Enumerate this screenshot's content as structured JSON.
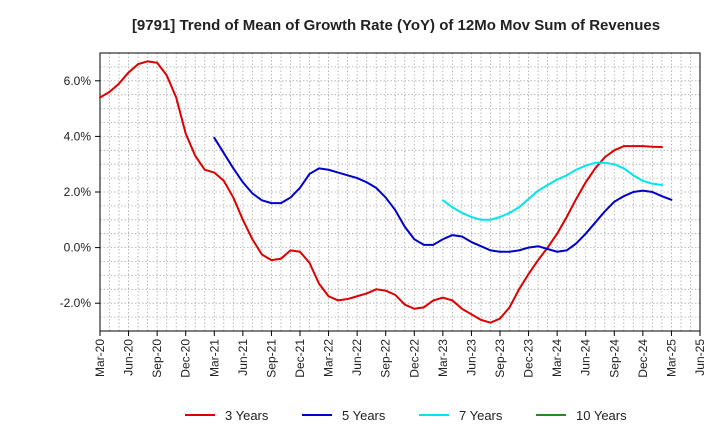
{
  "chart_data": {
    "type": "line",
    "title": "[9791]  Trend of Mean of Growth Rate (YoY) of 12Mo Mov Sum of Revenues",
    "xlabel": "",
    "ylabel": "",
    "ylim": [
      -3.0,
      7.0
    ],
    "y_ticks": [
      -2.0,
      0.0,
      2.0,
      4.0,
      6.0
    ],
    "y_tick_labels": [
      "-2.0%",
      "0.0%",
      "2.0%",
      "4.0%",
      "6.0%"
    ],
    "x_tick_labels": [
      "Mar-20",
      "Jun-20",
      "Sep-20",
      "Dec-20",
      "Mar-21",
      "Jun-21",
      "Sep-21",
      "Dec-21",
      "Mar-22",
      "Jun-22",
      "Sep-22",
      "Dec-22",
      "Mar-23",
      "Jun-23",
      "Sep-23",
      "Dec-23",
      "Mar-24",
      "Jun-24",
      "Sep-24",
      "Dec-24",
      "Mar-25",
      "Jun-25"
    ],
    "x_index_range": [
      0,
      63
    ],
    "grid": true,
    "legend_position": "bottom",
    "series": [
      {
        "name": "3 Years",
        "color": "#dd0000",
        "start_index": 0,
        "values": [
          5.4,
          5.6,
          5.9,
          6.3,
          6.6,
          6.7,
          6.65,
          6.2,
          5.4,
          4.1,
          3.3,
          2.8,
          2.7,
          2.4,
          1.8,
          1.0,
          0.3,
          -0.25,
          -0.45,
          -0.4,
          -0.1,
          -0.15,
          -0.55,
          -1.3,
          -1.75,
          -1.9,
          -1.85,
          -1.75,
          -1.65,
          -1.5,
          -1.55,
          -1.7,
          -2.05,
          -2.2,
          -2.15,
          -1.9,
          -1.8,
          -1.9,
          -2.2,
          -2.4,
          -2.6,
          -2.7,
          -2.55,
          -2.15,
          -1.5,
          -0.95,
          -0.45,
          0.0,
          0.5,
          1.1,
          1.75,
          2.35,
          2.85,
          3.25,
          3.5,
          3.65,
          3.65,
          3.65,
          3.63,
          3.62
        ]
      },
      {
        "name": "5 Years",
        "color": "#0000cc",
        "start_index": 12,
        "values": [
          3.95,
          3.4,
          2.85,
          2.35,
          1.95,
          1.7,
          1.6,
          1.6,
          1.8,
          2.15,
          2.65,
          2.85,
          2.8,
          2.7,
          2.6,
          2.5,
          2.35,
          2.15,
          1.8,
          1.35,
          0.75,
          0.3,
          0.1,
          0.1,
          0.3,
          0.45,
          0.4,
          0.2,
          0.05,
          -0.1,
          -0.15,
          -0.15,
          -0.1,
          0.0,
          0.05,
          -0.05,
          -0.15,
          -0.1,
          0.15,
          0.5,
          0.9,
          1.3,
          1.65,
          1.85,
          2.0,
          2.05,
          2.0,
          1.85,
          1.72
        ]
      },
      {
        "name": "7 Years",
        "color": "#00e5ee",
        "start_index": 36,
        "values": [
          1.7,
          1.45,
          1.25,
          1.1,
          1.0,
          1.0,
          1.1,
          1.25,
          1.45,
          1.75,
          2.05,
          2.25,
          2.45,
          2.6,
          2.8,
          2.95,
          3.05,
          3.05,
          3.0,
          2.85,
          2.6,
          2.4,
          2.3,
          2.25
        ]
      },
      {
        "name": "10 Years",
        "color": "#228b22",
        "start_index": 0,
        "values": []
      }
    ]
  }
}
